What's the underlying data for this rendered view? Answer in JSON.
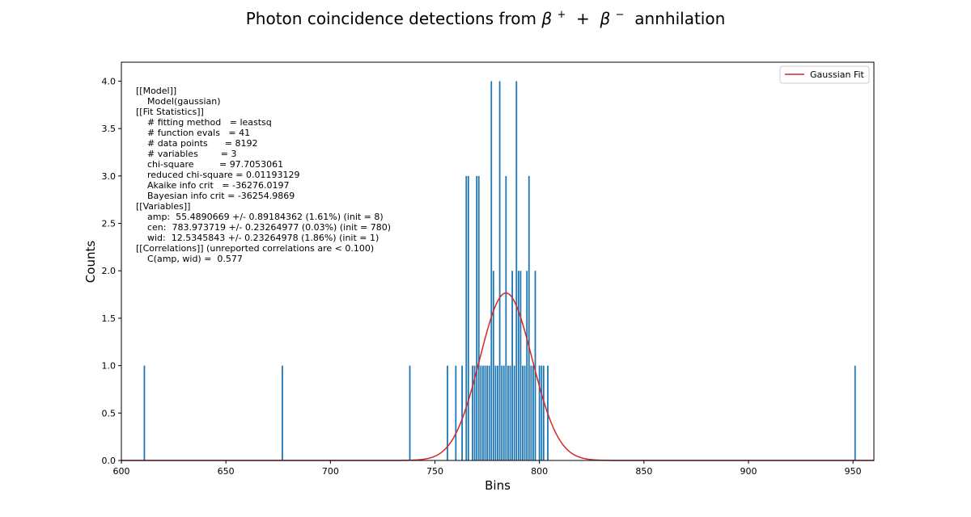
{
  "chart_data": {
    "type": "bar",
    "title": "Photon coincidence detections from",
    "title_math": {
      "a": "β",
      "a_sup": "+",
      "plus": " + ",
      "b": "β",
      "b_sup": "−",
      "tail": " annhilation"
    },
    "xlabel": "Bins",
    "ylabel": "Counts",
    "xlim": [
      600,
      960
    ],
    "ylim": [
      0,
      4.2
    ],
    "xticks": [
      "600",
      "650",
      "700",
      "750",
      "800",
      "850",
      "900",
      "950"
    ],
    "yticks": [
      "0.0",
      "0.5",
      "1.0",
      "1.5",
      "2.0",
      "2.5",
      "3.0",
      "3.5",
      "4.0"
    ],
    "bar_color": "#1f77b4",
    "fit_color": "#d62728",
    "bars": {
      "x": [
        611,
        677,
        738,
        756,
        760,
        763,
        765,
        766,
        768,
        769,
        770,
        771,
        772,
        773,
        774,
        775,
        776,
        777,
        778,
        779,
        780,
        781,
        782,
        783,
        784,
        785,
        786,
        787,
        788,
        789,
        790,
        791,
        792,
        793,
        794,
        795,
        796,
        797,
        798,
        800,
        801,
        802,
        804,
        951
      ],
      "y": [
        1,
        1,
        1,
        1,
        1,
        1,
        3,
        3,
        1,
        1,
        3,
        3,
        1,
        1,
        1,
        1,
        1,
        4,
        2,
        1,
        1,
        4,
        1,
        1,
        3,
        1,
        1,
        2,
        1,
        4,
        2,
        2,
        1,
        1,
        2,
        3,
        1,
        1,
        2,
        1,
        1,
        1,
        1,
        1
      ]
    },
    "gaussian_fit": {
      "label": "Gaussian Fit",
      "amp": 55.4890669,
      "cen": 783.973719,
      "wid": 12.5345843
    },
    "legend": {
      "entries": [
        "Gaussian Fit"
      ],
      "position": "top-right"
    },
    "fit_report": [
      "[[Model]]",
      "    Model(gaussian)",
      "[[Fit Statistics]]",
      "    # fitting method   = leastsq",
      "    # function evals   = 41",
      "    # data points      = 8192",
      "    # variables        = 3",
      "    chi-square         = 97.7053061",
      "    reduced chi-square = 0.01193129",
      "    Akaike info crit   = -36276.0197",
      "    Bayesian info crit = -36254.9869",
      "[[Variables]]",
      "    amp:  55.4890669 +/- 0.89184362 (1.61%) (init = 8)",
      "    cen:  783.973719 +/- 0.23264977 (0.03%) (init = 780)",
      "    wid:  12.5345843 +/- 0.23264978 (1.86%) (init = 1)",
      "[[Correlations]] (unreported correlations are < 0.100)",
      "    C(amp, wid) =  0.577"
    ]
  }
}
